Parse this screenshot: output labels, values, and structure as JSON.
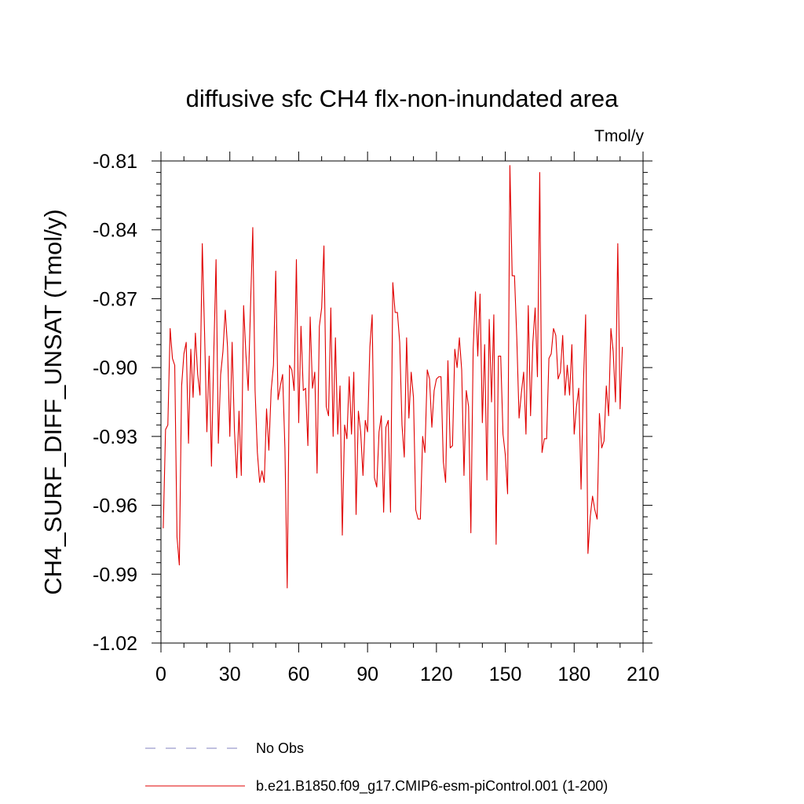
{
  "chart_data": {
    "type": "line",
    "title": "diffusive sfc CH4 flx-non-inundated area",
    "units_label": "Tmol/y",
    "ylabel": "CH4_SURF_DIFF_UNSAT  (Tmol/y)",
    "xlabel": "",
    "xlim": [
      0,
      210
    ],
    "ylim": [
      -1.02,
      -0.81
    ],
    "x_ticks": [
      0,
      30,
      60,
      90,
      120,
      150,
      180,
      210
    ],
    "x_tick_labels": [
      "0",
      "30",
      "60",
      "90",
      "120",
      "150",
      "180",
      "210"
    ],
    "y_ticks": [
      -0.81,
      -0.84,
      -0.87,
      -0.9,
      -0.93,
      -0.96,
      -0.99,
      -1.02
    ],
    "y_tick_labels": [
      "-0.81",
      "-0.84",
      "-0.87",
      "-0.90",
      "-0.93",
      "-0.96",
      "-0.99",
      "-1.02"
    ],
    "x_minor_step": 10,
    "y_minor_step": 0.005,
    "grid": false,
    "legend_position": "bottom",
    "legend": [
      {
        "name": "No Obs",
        "color": "#8080c0",
        "style": "dashed"
      },
      {
        "name": "b.e21.B1850.f09_g17.CMIP6-esm-piControl.001 (1-200)",
        "color": "#e00000",
        "style": "solid"
      }
    ],
    "series": [
      {
        "name": "b.e21.B1850.f09_g17.CMIP6-esm-piControl.001 (1-200)",
        "color": "#e00000",
        "x_start": 1,
        "x_step": 1,
        "values": [
          -0.97,
          -0.927,
          -0.925,
          -0.883,
          -0.896,
          -0.899,
          -0.974,
          -0.986,
          -0.908,
          -0.894,
          -0.889,
          -0.933,
          -0.892,
          -0.913,
          -0.885,
          -0.903,
          -0.912,
          -0.846,
          -0.885,
          -0.928,
          -0.895,
          -0.943,
          -0.894,
          -0.853,
          -0.933,
          -0.903,
          -0.893,
          -0.875,
          -0.891,
          -0.93,
          -0.889,
          -0.927,
          -0.948,
          -0.919,
          -0.947,
          -0.873,
          -0.894,
          -0.91,
          -0.874,
          -0.839,
          -0.91,
          -0.937,
          -0.95,
          -0.945,
          -0.95,
          -0.918,
          -0.936,
          -0.91,
          -0.899,
          -0.858,
          -0.914,
          -0.908,
          -0.903,
          -0.935,
          -0.996,
          -0.899,
          -0.901,
          -0.91,
          -0.853,
          -0.924,
          -0.882,
          -0.91,
          -0.909,
          -0.934,
          -0.878,
          -0.909,
          -0.902,
          -0.946,
          -0.882,
          -0.874,
          -0.847,
          -0.917,
          -0.921,
          -0.874,
          -0.93,
          -0.887,
          -0.929,
          -0.908,
          -0.973,
          -0.925,
          -0.931,
          -0.904,
          -0.929,
          -0.902,
          -0.964,
          -0.919,
          -0.928,
          -0.947,
          -0.923,
          -0.928,
          -0.891,
          -0.877,
          -0.948,
          -0.952,
          -0.928,
          -0.921,
          -0.963,
          -0.926,
          -0.923,
          -0.963,
          -0.863,
          -0.876,
          -0.876,
          -0.889,
          -0.925,
          -0.939,
          -0.887,
          -0.922,
          -0.902,
          -0.913,
          -0.962,
          -0.966,
          -0.966,
          -0.93,
          -0.937,
          -0.901,
          -0.905,
          -0.926,
          -0.91,
          -0.905,
          -0.904,
          -0.904,
          -0.941,
          -0.95,
          -0.897,
          -0.935,
          -0.934,
          -0.892,
          -0.9,
          -0.887,
          -0.901,
          -0.947,
          -0.91,
          -0.917,
          -0.972,
          -0.892,
          -0.867,
          -0.895,
          -0.868,
          -0.924,
          -0.89,
          -0.949,
          -0.879,
          -0.915,
          -0.877,
          -0.977,
          -0.895,
          -0.895,
          -0.929,
          -0.938,
          -0.955,
          -0.812,
          -0.86,
          -0.86,
          -0.887,
          -0.922,
          -0.911,
          -0.902,
          -0.929,
          -0.873,
          -0.921,
          -0.889,
          -0.874,
          -0.904,
          -0.815,
          -0.937,
          -0.931,
          -0.931,
          -0.896,
          -0.894,
          -0.883,
          -0.886,
          -0.905,
          -0.902,
          -0.886,
          -0.912,
          -0.899,
          -0.912,
          -0.89,
          -0.929,
          -0.917,
          -0.909,
          -0.953,
          -0.908,
          -0.877,
          -0.981,
          -0.965,
          -0.956,
          -0.962,
          -0.966,
          -0.92,
          -0.935,
          -0.932,
          -0.908,
          -0.921,
          -0.883,
          -0.893,
          -0.915,
          -0.846,
          -0.918,
          -0.891
        ]
      }
    ]
  }
}
